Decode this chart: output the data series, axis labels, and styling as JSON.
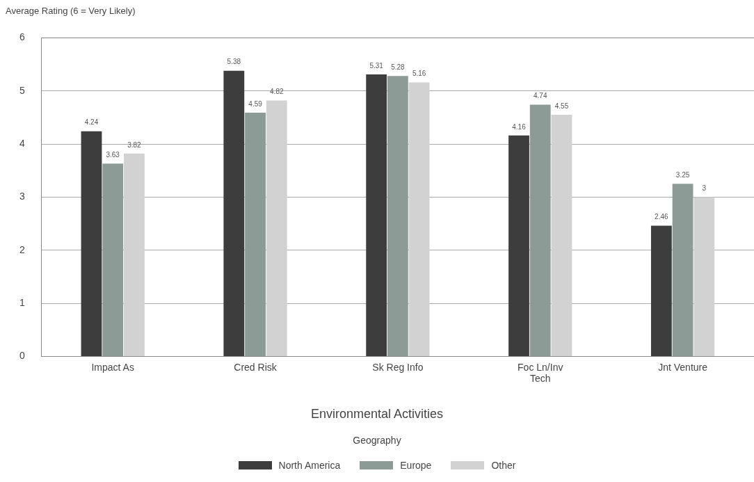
{
  "chart_data": {
    "type": "bar",
    "ylabel": "Average Rating (6 = Very Likely)",
    "xlabel": "Environmental Activities",
    "legend_title": "Geography",
    "categories": [
      "Impact As",
      "Cred Risk",
      "Sk Reg Info",
      "Foc Ln/Inv Tech",
      "Jnt Venture"
    ],
    "series": [
      {
        "name": "North America",
        "color": "#3d3d3d",
        "values": [
          4.24,
          5.38,
          5.31,
          4.16,
          2.46
        ]
      },
      {
        "name": "Europe",
        "color": "#8c9b95",
        "values": [
          3.63,
          4.59,
          5.28,
          4.74,
          3.25
        ]
      },
      {
        "name": "Other",
        "color": "#d2d2d2",
        "values": [
          3.82,
          4.82,
          5.16,
          4.55,
          3
        ]
      }
    ],
    "ylim": [
      0,
      6
    ],
    "yticks": [
      0,
      1,
      2,
      3,
      4,
      5,
      6
    ],
    "grid": "y",
    "legend": "bottom",
    "data_labels": true
  }
}
